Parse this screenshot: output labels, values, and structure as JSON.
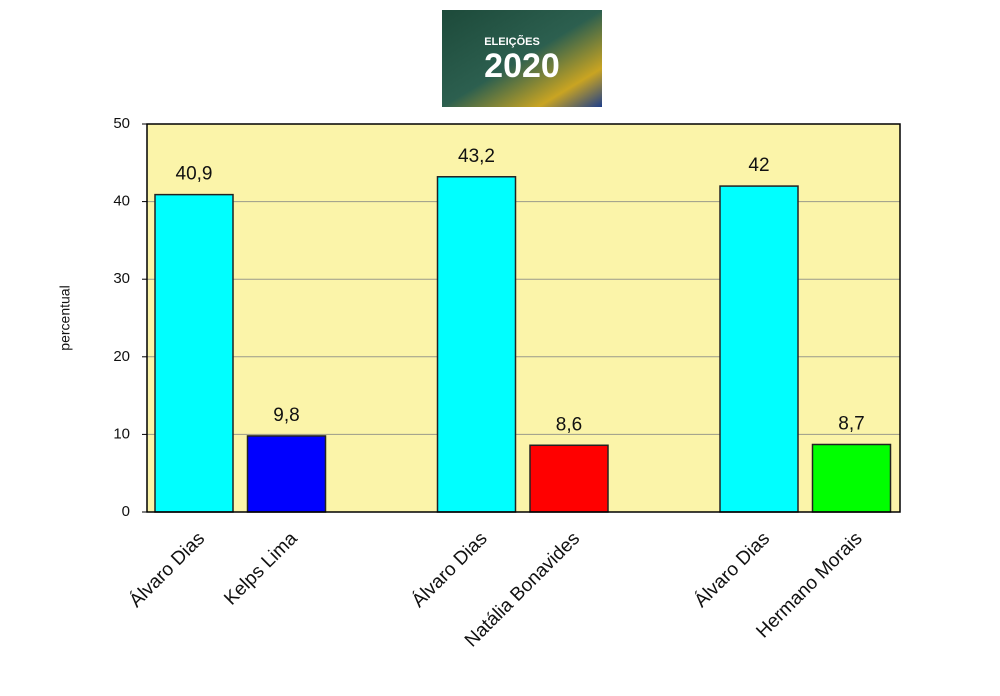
{
  "chart_data": {
    "type": "bar",
    "logo_text": [
      "ELEIÇÕES",
      "2020"
    ],
    "y_label": "percentual",
    "categories": [
      "Álvaro Dias",
      "Kelps Lima",
      "Álvaro Dias",
      "Natália Bonavides",
      "Álvaro Dias",
      "Hermano Morais"
    ],
    "values": [
      40.9,
      9.8,
      43.2,
      8.6,
      42,
      8.7
    ],
    "value_labels": [
      "40,9",
      "9,8",
      "43,2",
      "8,6",
      "42",
      "8,7"
    ],
    "colors": [
      "#00ffff",
      "#0000ff",
      "#00ffff",
      "#ff0000",
      "#00ffff",
      "#00ff00"
    ],
    "ylim": [
      0,
      50
    ],
    "yticks": [
      0,
      10,
      20,
      30,
      40,
      50
    ],
    "grid": true
  }
}
